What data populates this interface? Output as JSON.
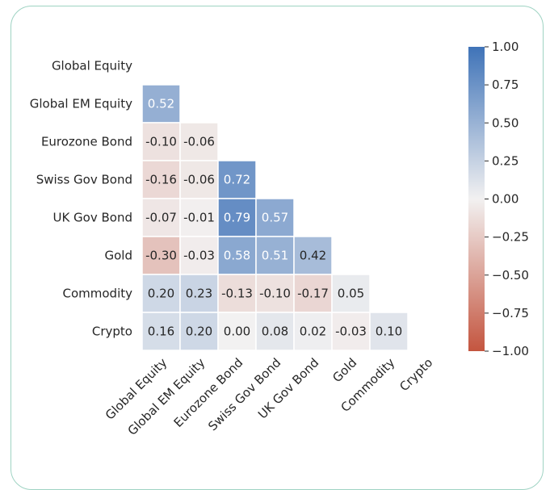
{
  "chart_data": {
    "type": "heatmap",
    "title": "",
    "xlabel": "",
    "ylabel": "",
    "mask": "upper-triangle-incl-diagonal",
    "row_labels": [
      "Global Equity",
      "Global EM Equity",
      "Eurozone Bond",
      "Swiss Gov Bond",
      "UK Gov Bond",
      "Gold",
      "Commodity",
      "Crypto"
    ],
    "col_labels": [
      "Global Equity",
      "Global EM Equity",
      "Eurozone Bond",
      "Swiss Gov Bond",
      "UK Gov Bond",
      "Gold",
      "Commodity",
      "Crypto"
    ],
    "values": [
      [],
      [
        0.52
      ],
      [
        -0.1,
        -0.06
      ],
      [
        -0.16,
        -0.06,
        0.72
      ],
      [
        -0.07,
        -0.01,
        0.79,
        0.57
      ],
      [
        -0.3,
        -0.03,
        0.58,
        0.51,
        0.42
      ],
      [
        0.2,
        0.23,
        -0.13,
        -0.1,
        -0.17,
        0.05
      ],
      [
        0.16,
        0.2,
        0.0,
        0.08,
        0.02,
        -0.03,
        0.1
      ]
    ],
    "cell_labels": [
      [],
      [
        "0.52"
      ],
      [
        "-0.10",
        "-0.06"
      ],
      [
        "-0.16",
        "-0.06",
        "0.72"
      ],
      [
        "-0.07",
        "-0.01",
        "0.79",
        "0.57"
      ],
      [
        "-0.30",
        "-0.03",
        "0.58",
        "0.51",
        "0.42"
      ],
      [
        "0.20",
        "0.23",
        "-0.13",
        "-0.10",
        "-0.17",
        "0.05"
      ],
      [
        "0.16",
        "0.20",
        "0.00",
        "0.08",
        "0.02",
        "-0.03",
        "0.10"
      ]
    ],
    "colorbar": {
      "vmin": -1.0,
      "vmax": 1.0,
      "ticks": [
        1.0,
        0.75,
        0.5,
        0.25,
        0.0,
        -0.25,
        -0.5,
        -0.75,
        -1.0
      ],
      "tick_labels": [
        "1.00",
        "0.75",
        "0.50",
        "0.25",
        "0.00",
        "−0.25",
        "−0.50",
        "−0.75",
        "−1.00"
      ],
      "colors": {
        "negative": "#c4553f",
        "center": "#f2f1f1",
        "positive": "#3f73b8"
      }
    }
  }
}
